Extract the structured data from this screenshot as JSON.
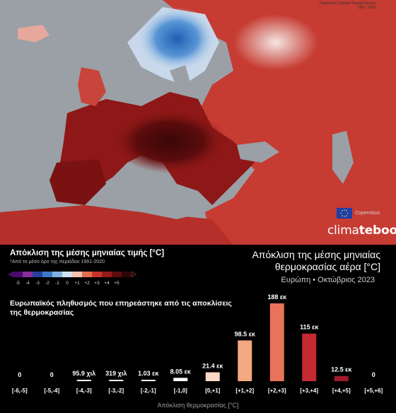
{
  "map_credit": {
    "line1": "Copernicus Climate Change Service",
    "line2": "1991 - 2020"
  },
  "brand": {
    "prefix": "clima",
    "bold": "tebook"
  },
  "copernicus_label": "Copernicus",
  "legend": {
    "title": "Απόκλιση της μέσης μηνιαίας τιμής [°C]",
    "subtitle": "*Από το μέσο όρο της περιόδου 1991-2020",
    "ticks": [
      "-5",
      "-4",
      "-3",
      "-2",
      "-1",
      "0",
      "+1",
      "+2",
      "+3",
      "+4",
      "+5"
    ],
    "colors": [
      "#4b0a6b",
      "#8a2e9c",
      "#2a3f9d",
      "#3d78c7",
      "#7fb2e0",
      "#cfe2f3",
      "#f4c2b0",
      "#e46d52",
      "#c9332a",
      "#961b1b",
      "#5e0c0c",
      "#2e0505"
    ]
  },
  "header": {
    "title_line1": "Απόκλιση της μέσης μηνιαίας",
    "title_line2": "θερμοκρασίας αέρα [°C]",
    "subtitle": "Ευρώπη • Οκτώβριος 2023"
  },
  "chart_title": "Ευρωπαϊκός πληθυσμός που επηρεάστηκε από τις αποκλίσεις της θερμοκρασίας",
  "chart_data": {
    "type": "bar",
    "title": "Ευρωπαϊκός πληθυσμός που επηρεάστηκε από τις αποκλίσεις της θερμοκρασίας",
    "xlabel": "Απόκλιση θερμοκρασίας [°C]",
    "ylabel": "",
    "categories": [
      "[-6,-5]",
      "[-5,-4]",
      "[-4,-3]",
      "[-3,-2]",
      "[-2,-1]",
      "[-1,0]",
      "[0,+1]",
      "[+1,+2]",
      "[+2,+3]",
      "[+3,+4]",
      "[+4,+5]",
      "[+5,+6]"
    ],
    "values_million": [
      0,
      0,
      0.0959,
      0.319,
      1.03,
      8.05,
      21.4,
      98.5,
      188,
      115,
      12.5,
      0
    ],
    "value_labels": [
      "0",
      "0",
      "95.9 χιλ",
      "319 χιλ",
      "1.03 εκ",
      "8.05 εκ",
      "21.4 εκ",
      "98.5 εκ",
      "188 εκ",
      "115 εκ",
      "12.5 εκ",
      "0"
    ],
    "colors": [
      "#ffffff",
      "#ffffff",
      "#ffffff",
      "#ffffff",
      "#ffffff",
      "#ffffff",
      "#fbd9c6",
      "#f4a882",
      "#e8735a",
      "#c52932",
      "#a01a2c",
      "#ffffff"
    ],
    "ylim": [
      0,
      188
    ],
    "grid": false,
    "legend": "none"
  }
}
